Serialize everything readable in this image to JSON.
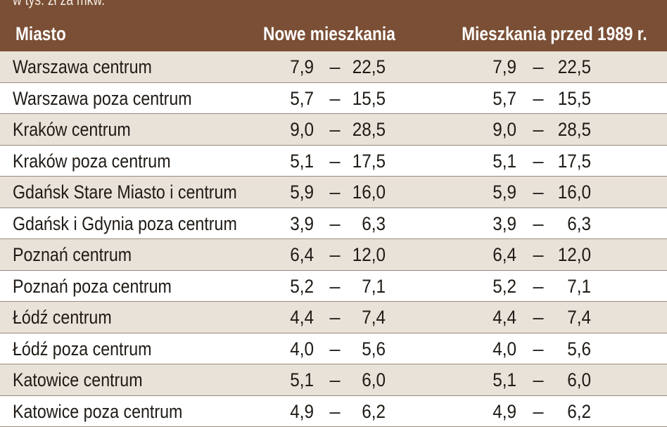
{
  "chart_data": {
    "type": "table",
    "subtitle": "w tys. zł za mkw.",
    "columns": [
      "Miasto",
      "Nowe mieszkania",
      "Mieszkania przed 1989 r."
    ],
    "range_separator": "–",
    "rows": [
      {
        "city": "Warszawa centrum",
        "new_min": "7,9",
        "new_max": "22,5",
        "old_min": "7,9",
        "old_max": "22,5"
      },
      {
        "city": "Warszawa poza centrum",
        "new_min": "5,7",
        "new_max": "15,5",
        "old_min": "5,7",
        "old_max": "15,5"
      },
      {
        "city": "Kraków centrum",
        "new_min": "9,0",
        "new_max": "28,5",
        "old_min": "9,0",
        "old_max": "28,5"
      },
      {
        "city": "Kraków poza centrum",
        "new_min": "5,1",
        "new_max": "17,5",
        "old_min": "5,1",
        "old_max": "17,5"
      },
      {
        "city": "Gdańsk Stare Miasto i centrum",
        "new_min": "5,9",
        "new_max": "16,0",
        "old_min": "5,9",
        "old_max": "16,0"
      },
      {
        "city": "Gdańsk i Gdynia poza centrum",
        "new_min": "3,9",
        "new_max": "6,3",
        "old_min": "3,9",
        "old_max": "6,3"
      },
      {
        "city": "Poznań centrum",
        "new_min": "6,4",
        "new_max": "12,0",
        "old_min": "6,4",
        "old_max": "12,0"
      },
      {
        "city": "Poznań poza centrum",
        "new_min": "5,2",
        "new_max": "7,1",
        "old_min": "5,2",
        "old_max": "7,1"
      },
      {
        "city": "Łódź centrum",
        "new_min": "4,4",
        "new_max": "7,4",
        "old_min": "4,4",
        "old_max": "7,4"
      },
      {
        "city": "Łódź poza centrum",
        "new_min": "4,0",
        "new_max": "5,6",
        "old_min": "4,0",
        "old_max": "5,6"
      },
      {
        "city": "Katowice centrum",
        "new_min": "5,1",
        "new_max": "6,0",
        "old_min": "5,1",
        "old_max": "6,0"
      },
      {
        "city": "Katowice poza centrum",
        "new_min": "4,9",
        "new_max": "6,2",
        "old_min": "4,9",
        "old_max": "6,2"
      }
    ]
  },
  "colors": {
    "header_bg": "#7a4f35",
    "header_text": "#ffffff",
    "row_shade": "#e8e2d9",
    "row_plain": "#ffffff",
    "divider": "#9a8a7a"
  }
}
